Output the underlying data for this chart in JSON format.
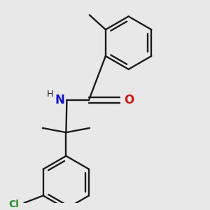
{
  "background_color": "#e8e8e8",
  "bond_color": "#1a1a1a",
  "n_color": "#1515cc",
  "o_color": "#cc1515",
  "cl_color": "#2a8a2a",
  "line_width": 1.7,
  "figsize": [
    3.0,
    3.0
  ],
  "dpi": 100,
  "ring_r": 0.36,
  "xlim": [
    0.3,
    2.7
  ],
  "ylim": [
    0.2,
    2.95
  ]
}
